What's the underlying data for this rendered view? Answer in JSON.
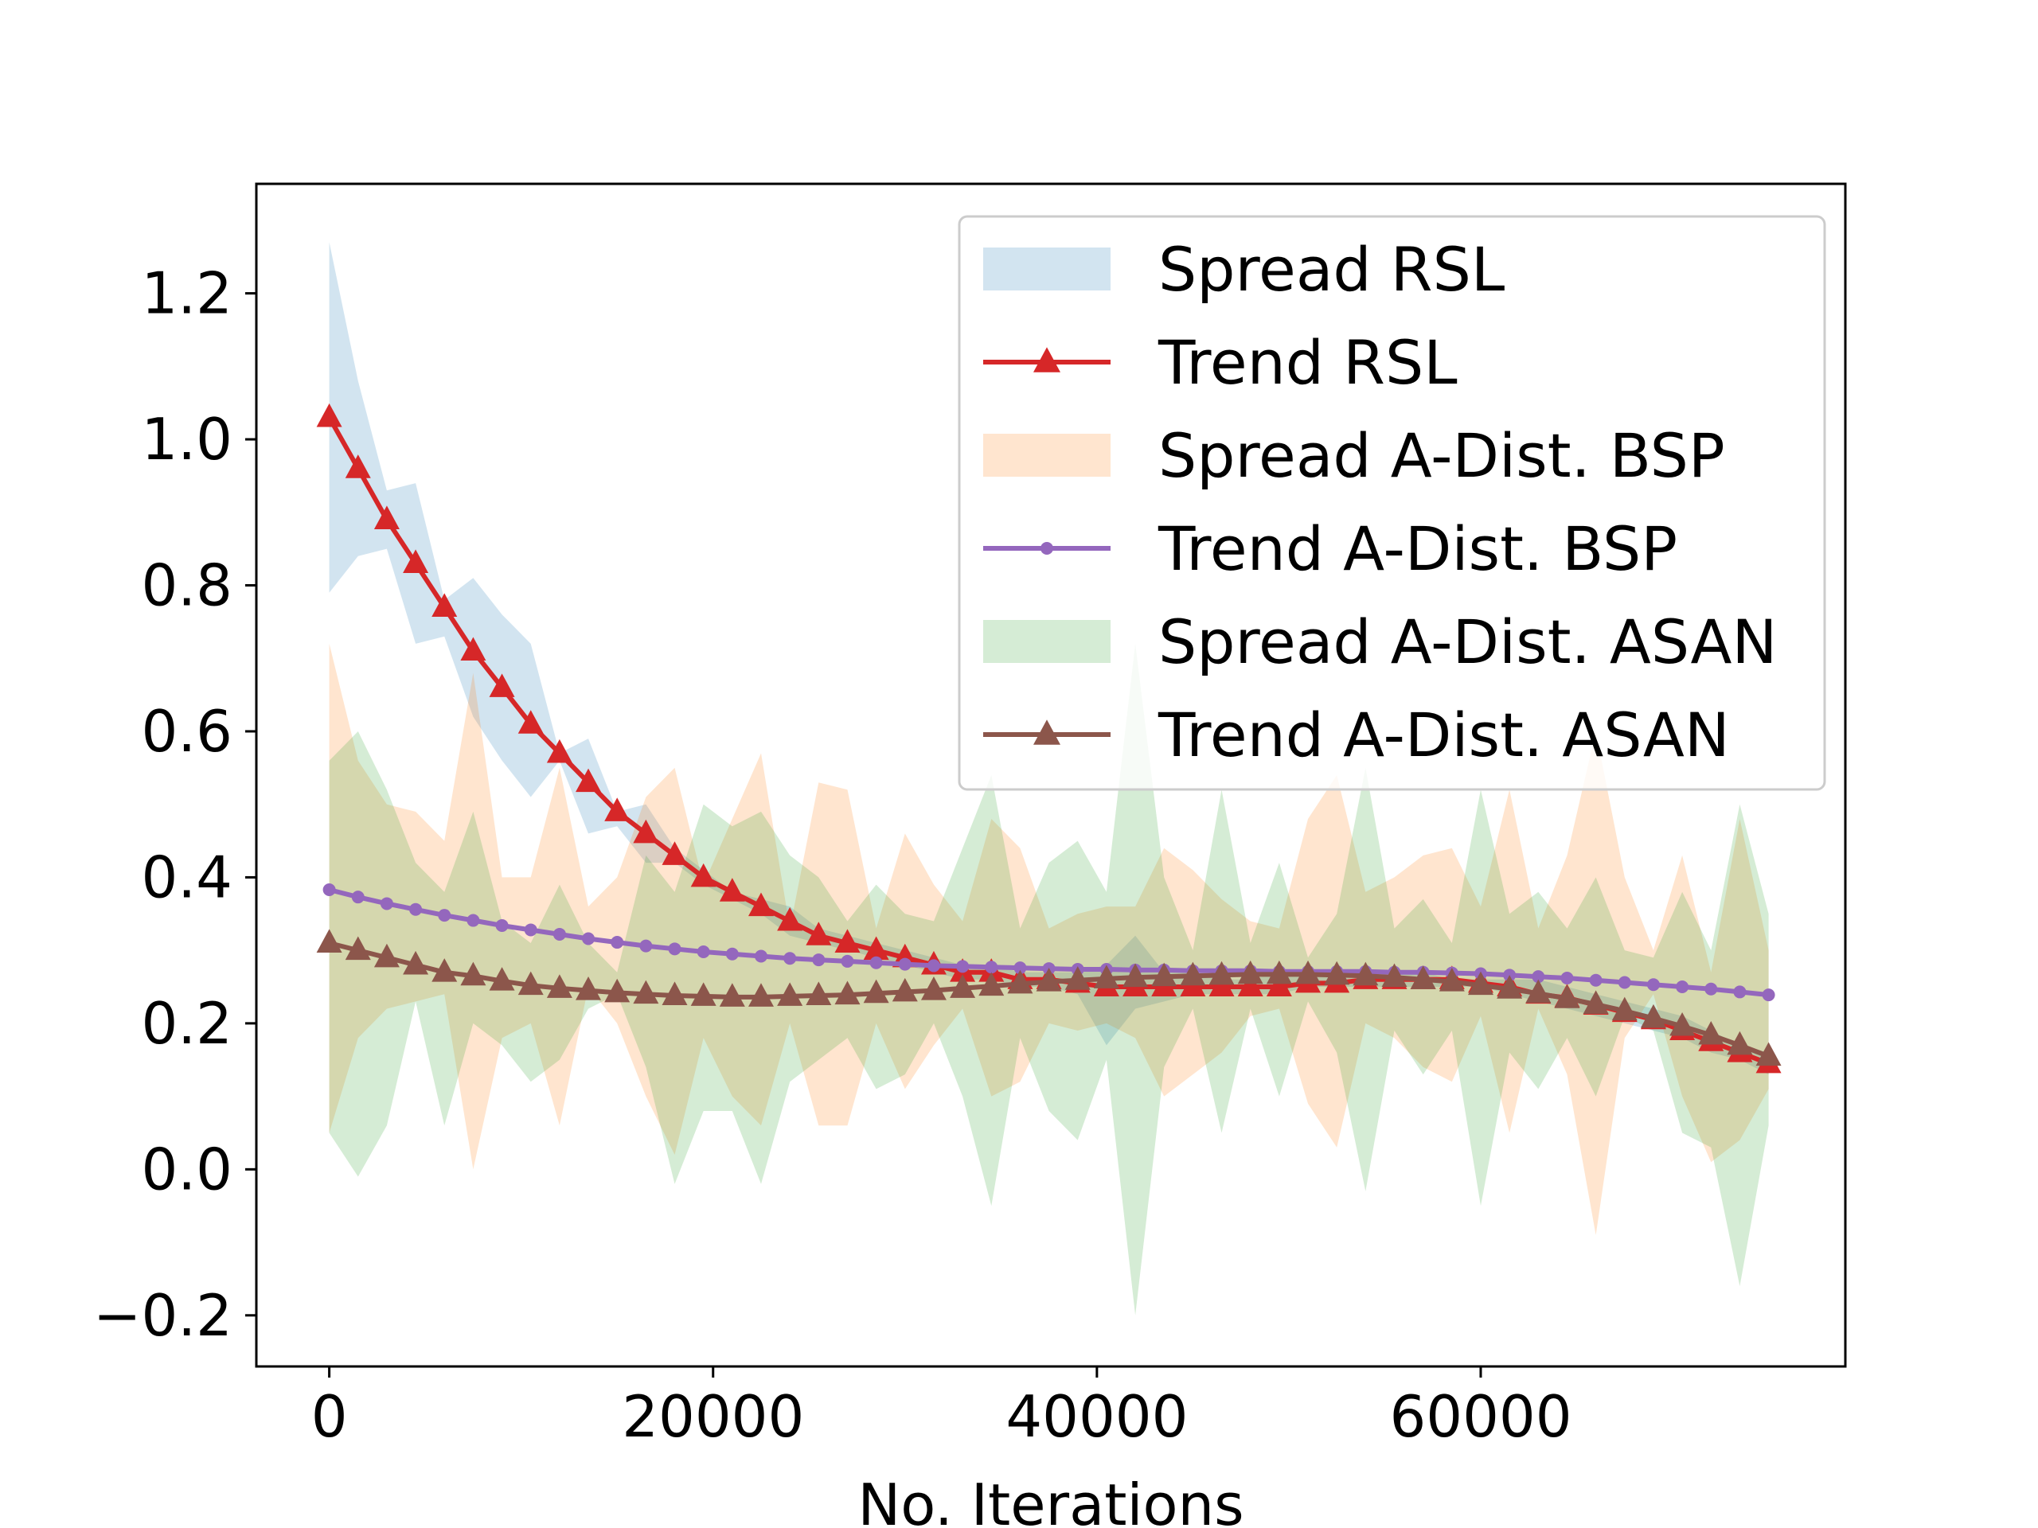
{
  "chart_data": {
    "type": "line",
    "title": "",
    "xlabel": "No. Iterations",
    "ylabel": "",
    "xlim": [
      -3800,
      79000
    ],
    "ylim": [
      -0.27,
      1.35
    ],
    "xticks": [
      0,
      20000,
      40000,
      60000
    ],
    "xtick_labels": [
      "0",
      "20000",
      "40000",
      "60000"
    ],
    "yticks": [
      -0.2,
      0.0,
      0.2,
      0.4,
      0.6,
      0.8,
      1.0,
      1.2
    ],
    "ytick_labels": [
      "−0.2",
      "0.0",
      "0.2",
      "0.4",
      "0.6",
      "0.8",
      "1.0",
      "1.2"
    ],
    "grid": false,
    "legend_position": "top-right",
    "colors": {
      "rsl_band": "#1f77b4",
      "rsl_line": "#d62728",
      "bsp_band": "#ff7f0e",
      "bsp_line": "#9467bd",
      "asan_band": "#2ca02c",
      "asan_line": "#8c564b"
    },
    "series": [
      {
        "name": "Trend RSL",
        "kind": "line",
        "marker": "triangle",
        "color": "#d62728",
        "x": [
          0,
          1500,
          3000,
          4500,
          6000,
          7500,
          9000,
          10500,
          12000,
          13500,
          15000,
          16500,
          18000,
          19500,
          21000,
          22500,
          24000,
          25500,
          27000,
          28500,
          30000,
          31500,
          33000,
          34500,
          36000,
          37500,
          39000,
          40500,
          42000,
          43500,
          45000,
          46500,
          48000,
          49500,
          51000,
          52500,
          54000,
          55500,
          57000,
          58500,
          60000,
          61500,
          63000,
          64500,
          66000,
          67500,
          69000,
          70500,
          72000,
          73500,
          75000
        ],
        "values": [
          1.03,
          0.96,
          0.89,
          0.83,
          0.77,
          0.71,
          0.66,
          0.61,
          0.57,
          0.53,
          0.49,
          0.46,
          0.43,
          0.4,
          0.38,
          0.36,
          0.34,
          0.32,
          0.31,
          0.3,
          0.29,
          0.28,
          0.27,
          0.27,
          0.26,
          0.26,
          0.255,
          0.25,
          0.25,
          0.25,
          0.25,
          0.25,
          0.25,
          0.25,
          0.255,
          0.255,
          0.26,
          0.26,
          0.26,
          0.26,
          0.255,
          0.25,
          0.24,
          0.235,
          0.225,
          0.215,
          0.205,
          0.19,
          0.175,
          0.16,
          0.145
        ]
      },
      {
        "name": "Trend A-Dist. BSP",
        "kind": "line",
        "marker": "dot",
        "color": "#9467bd",
        "x": [
          0,
          1500,
          3000,
          4500,
          6000,
          7500,
          9000,
          10500,
          12000,
          13500,
          15000,
          16500,
          18000,
          19500,
          21000,
          22500,
          24000,
          25500,
          27000,
          28500,
          30000,
          31500,
          33000,
          34500,
          36000,
          37500,
          39000,
          40500,
          42000,
          43500,
          45000,
          46500,
          48000,
          49500,
          51000,
          52500,
          54000,
          55500,
          57000,
          58500,
          60000,
          61500,
          63000,
          64500,
          66000,
          67500,
          69000,
          70500,
          72000,
          73500,
          75000
        ],
        "values": [
          0.383,
          0.373,
          0.364,
          0.356,
          0.348,
          0.341,
          0.334,
          0.328,
          0.322,
          0.316,
          0.311,
          0.306,
          0.302,
          0.298,
          0.295,
          0.292,
          0.289,
          0.287,
          0.285,
          0.283,
          0.281,
          0.279,
          0.278,
          0.277,
          0.276,
          0.275,
          0.274,
          0.274,
          0.273,
          0.273,
          0.272,
          0.272,
          0.272,
          0.271,
          0.271,
          0.271,
          0.271,
          0.27,
          0.27,
          0.269,
          0.268,
          0.266,
          0.264,
          0.262,
          0.259,
          0.256,
          0.253,
          0.25,
          0.247,
          0.243,
          0.239
        ]
      },
      {
        "name": "Trend A-Dist. ASAN",
        "kind": "line",
        "marker": "triangle",
        "color": "#8c564b",
        "x": [
          0,
          1500,
          3000,
          4500,
          6000,
          7500,
          9000,
          10500,
          12000,
          13500,
          15000,
          16500,
          18000,
          19500,
          21000,
          22500,
          24000,
          25500,
          27000,
          28500,
          30000,
          31500,
          33000,
          34500,
          36000,
          37500,
          39000,
          40500,
          42000,
          43500,
          45000,
          46500,
          48000,
          49500,
          51000,
          52500,
          54000,
          55500,
          57000,
          58500,
          60000,
          61500,
          63000,
          64500,
          66000,
          67500,
          69000,
          70500,
          72000,
          73500,
          75000
        ],
        "values": [
          0.31,
          0.3,
          0.29,
          0.28,
          0.27,
          0.265,
          0.258,
          0.252,
          0.248,
          0.245,
          0.242,
          0.24,
          0.238,
          0.237,
          0.236,
          0.236,
          0.237,
          0.238,
          0.239,
          0.241,
          0.243,
          0.245,
          0.248,
          0.251,
          0.254,
          0.257,
          0.259,
          0.261,
          0.263,
          0.264,
          0.265,
          0.266,
          0.267,
          0.267,
          0.267,
          0.266,
          0.265,
          0.263,
          0.26,
          0.257,
          0.252,
          0.247,
          0.241,
          0.234,
          0.226,
          0.217,
          0.207,
          0.196,
          0.184,
          0.17,
          0.155
        ]
      },
      {
        "name": "Spread RSL",
        "kind": "band",
        "color": "#1f77b4",
        "x": [
          0,
          1500,
          3000,
          4500,
          6000,
          7500,
          9000,
          10500,
          12000,
          13500,
          15000,
          16500,
          18000,
          19500,
          21000,
          22500,
          24000,
          25500,
          27000,
          28500,
          30000,
          31500,
          33000,
          34500,
          36000,
          37500,
          39000,
          40500,
          42000,
          43500,
          45000,
          46500,
          48000,
          49500,
          51000,
          52500,
          54000,
          55500,
          57000,
          58500,
          60000,
          61500,
          63000,
          64500,
          66000,
          67500,
          69000,
          70500,
          72000,
          73500,
          75000
        ],
        "upper": [
          1.27,
          1.08,
          0.93,
          0.94,
          0.78,
          0.81,
          0.76,
          0.72,
          0.57,
          0.59,
          0.49,
          0.5,
          0.44,
          0.41,
          0.38,
          0.37,
          0.36,
          0.33,
          0.32,
          0.31,
          0.3,
          0.29,
          0.28,
          0.28,
          0.27,
          0.27,
          0.27,
          0.28,
          0.32,
          0.27,
          0.27,
          0.26,
          0.26,
          0.27,
          0.27,
          0.27,
          0.27,
          0.27,
          0.27,
          0.26,
          0.26,
          0.26,
          0.26,
          0.25,
          0.24,
          0.23,
          0.22,
          0.21,
          0.19,
          0.17,
          0.16
        ],
        "lower": [
          0.79,
          0.84,
          0.85,
          0.72,
          0.73,
          0.62,
          0.56,
          0.51,
          0.56,
          0.46,
          0.47,
          0.42,
          0.42,
          0.39,
          0.37,
          0.35,
          0.32,
          0.31,
          0.3,
          0.29,
          0.28,
          0.27,
          0.26,
          0.26,
          0.25,
          0.25,
          0.24,
          0.17,
          0.22,
          0.23,
          0.24,
          0.24,
          0.24,
          0.24,
          0.25,
          0.25,
          0.25,
          0.25,
          0.25,
          0.25,
          0.25,
          0.24,
          0.23,
          0.22,
          0.21,
          0.2,
          0.19,
          0.18,
          0.16,
          0.15,
          0.13
        ]
      },
      {
        "name": "Spread A-Dist. BSP",
        "kind": "band",
        "color": "#ff7f0e",
        "x": [
          0,
          1500,
          3000,
          4500,
          6000,
          7500,
          9000,
          10500,
          12000,
          13500,
          15000,
          16500,
          18000,
          19500,
          21000,
          22500,
          24000,
          25500,
          27000,
          28500,
          30000,
          31500,
          33000,
          34500,
          36000,
          37500,
          39000,
          40500,
          42000,
          43500,
          45000,
          46500,
          48000,
          49500,
          51000,
          52500,
          54000,
          55500,
          57000,
          58500,
          60000,
          61500,
          63000,
          64500,
          66000,
          67500,
          69000,
          70500,
          72000,
          73500,
          75000
        ],
        "upper": [
          0.72,
          0.56,
          0.5,
          0.49,
          0.45,
          0.68,
          0.4,
          0.4,
          0.55,
          0.36,
          0.4,
          0.51,
          0.55,
          0.39,
          0.48,
          0.57,
          0.33,
          0.53,
          0.52,
          0.33,
          0.46,
          0.39,
          0.34,
          0.48,
          0.44,
          0.33,
          0.35,
          0.36,
          0.36,
          0.44,
          0.41,
          0.37,
          0.34,
          0.33,
          0.48,
          0.54,
          0.38,
          0.4,
          0.43,
          0.44,
          0.36,
          0.52,
          0.33,
          0.43,
          0.6,
          0.4,
          0.3,
          0.43,
          0.27,
          0.48,
          0.3
        ],
        "lower": [
          0.05,
          0.18,
          0.22,
          0.23,
          0.24,
          0.0,
          0.18,
          0.2,
          0.06,
          0.25,
          0.2,
          0.1,
          0.02,
          0.18,
          0.1,
          0.06,
          0.2,
          0.06,
          0.06,
          0.2,
          0.11,
          0.17,
          0.22,
          0.1,
          0.12,
          0.2,
          0.19,
          0.2,
          0.18,
          0.1,
          0.13,
          0.16,
          0.21,
          0.22,
          0.09,
          0.03,
          0.2,
          0.18,
          0.14,
          0.12,
          0.21,
          0.05,
          0.22,
          0.13,
          -0.09,
          0.18,
          0.24,
          0.1,
          0.01,
          0.04,
          0.11
        ]
      },
      {
        "name": "Spread A-Dist. ASAN",
        "kind": "band",
        "color": "#2ca02c",
        "x": [
          0,
          1500,
          3000,
          4500,
          6000,
          7500,
          9000,
          10500,
          12000,
          13500,
          15000,
          16500,
          18000,
          19500,
          21000,
          22500,
          24000,
          25500,
          27000,
          28500,
          30000,
          31500,
          33000,
          34500,
          36000,
          37500,
          39000,
          40500,
          42000,
          43500,
          45000,
          46500,
          48000,
          49500,
          51000,
          52500,
          54000,
          55500,
          57000,
          58500,
          60000,
          61500,
          63000,
          64500,
          66000,
          67500,
          69000,
          70500,
          72000,
          73500,
          75000
        ],
        "upper": [
          0.56,
          0.6,
          0.52,
          0.42,
          0.38,
          0.49,
          0.34,
          0.31,
          0.39,
          0.31,
          0.27,
          0.43,
          0.38,
          0.5,
          0.47,
          0.49,
          0.43,
          0.4,
          0.34,
          0.39,
          0.35,
          0.34,
          0.44,
          0.54,
          0.33,
          0.42,
          0.45,
          0.38,
          0.72,
          0.4,
          0.3,
          0.52,
          0.31,
          0.42,
          0.29,
          0.35,
          0.55,
          0.33,
          0.37,
          0.31,
          0.52,
          0.35,
          0.38,
          0.33,
          0.4,
          0.3,
          0.29,
          0.38,
          0.3,
          0.5,
          0.35
        ],
        "lower": [
          0.05,
          -0.01,
          0.06,
          0.23,
          0.06,
          0.2,
          0.17,
          0.12,
          0.15,
          0.22,
          0.24,
          0.14,
          -0.02,
          0.08,
          0.08,
          -0.02,
          0.12,
          0.15,
          0.18,
          0.11,
          0.13,
          0.2,
          0.1,
          -0.05,
          0.18,
          0.08,
          0.04,
          0.15,
          -0.2,
          0.14,
          0.22,
          0.05,
          0.22,
          0.1,
          0.23,
          0.16,
          -0.03,
          0.19,
          0.13,
          0.19,
          -0.05,
          0.16,
          0.11,
          0.18,
          0.1,
          0.21,
          0.19,
          0.05,
          0.03,
          -0.16,
          0.06
        ]
      }
    ],
    "legend": [
      {
        "label": "Spread RSL",
        "kind": "band",
        "color": "#1f77b4"
      },
      {
        "label": "Trend RSL",
        "kind": "line",
        "marker": "triangle",
        "color": "#d62728"
      },
      {
        "label": "Spread A-Dist. BSP",
        "kind": "band",
        "color": "#ff7f0e"
      },
      {
        "label": "Trend A-Dist. BSP",
        "kind": "line",
        "marker": "dot",
        "color": "#9467bd"
      },
      {
        "label": "Spread A-Dist. ASAN",
        "kind": "band",
        "color": "#2ca02c"
      },
      {
        "label": "Trend A-Dist. ASAN",
        "kind": "line",
        "marker": "triangle",
        "color": "#8c564b"
      }
    ]
  }
}
